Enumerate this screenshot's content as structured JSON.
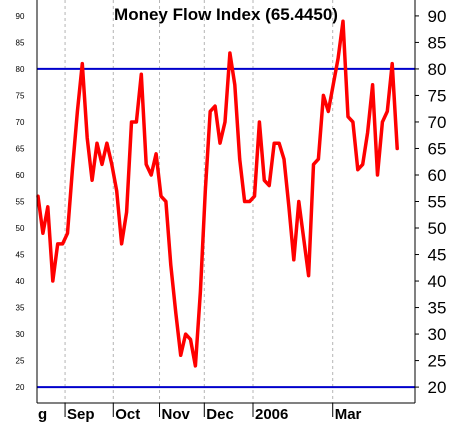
{
  "chart_data": {
    "type": "line",
    "title": "Money Flow Index (65.4450)",
    "xlabel": "",
    "ylabel": "",
    "ylim": [
      17,
      93
    ],
    "y_ticks": [
      20,
      25,
      30,
      35,
      40,
      45,
      50,
      55,
      60,
      65,
      70,
      75,
      80,
      85,
      90
    ],
    "x_tick_labels": [
      "g",
      "Sep",
      "Oct",
      "Nov",
      "Dec",
      "2006",
      "Mar"
    ],
    "x_tick_index": [
      0,
      5.5,
      15.3,
      24.7,
      33.8,
      43.7,
      59.9
    ],
    "grid": "vertical dashed at month starts",
    "reference_lines": [
      20,
      80
    ],
    "series": [
      {
        "color": "#ff0000",
        "values": [
          56,
          49,
          54,
          40,
          47,
          47,
          49,
          61,
          72,
          81,
          67,
          59,
          66,
          62,
          66,
          62,
          57,
          47,
          53,
          70,
          70,
          79,
          62,
          60,
          64,
          56,
          55,
          43,
          34,
          26,
          30,
          29,
          24,
          38,
          57,
          72,
          73,
          66,
          70,
          83,
          77,
          63,
          55,
          55,
          56,
          70,
          59,
          58,
          66,
          66,
          63,
          54,
          44,
          55,
          48,
          41,
          62,
          63,
          75,
          72,
          77,
          82,
          89,
          71,
          70,
          61,
          62,
          68,
          77,
          60,
          70,
          72,
          81,
          65
        ]
      }
    ],
    "line_colors": {
      "reference": "#0000cc",
      "grid": "#b4b4b4",
      "series": "#ff0000"
    }
  }
}
